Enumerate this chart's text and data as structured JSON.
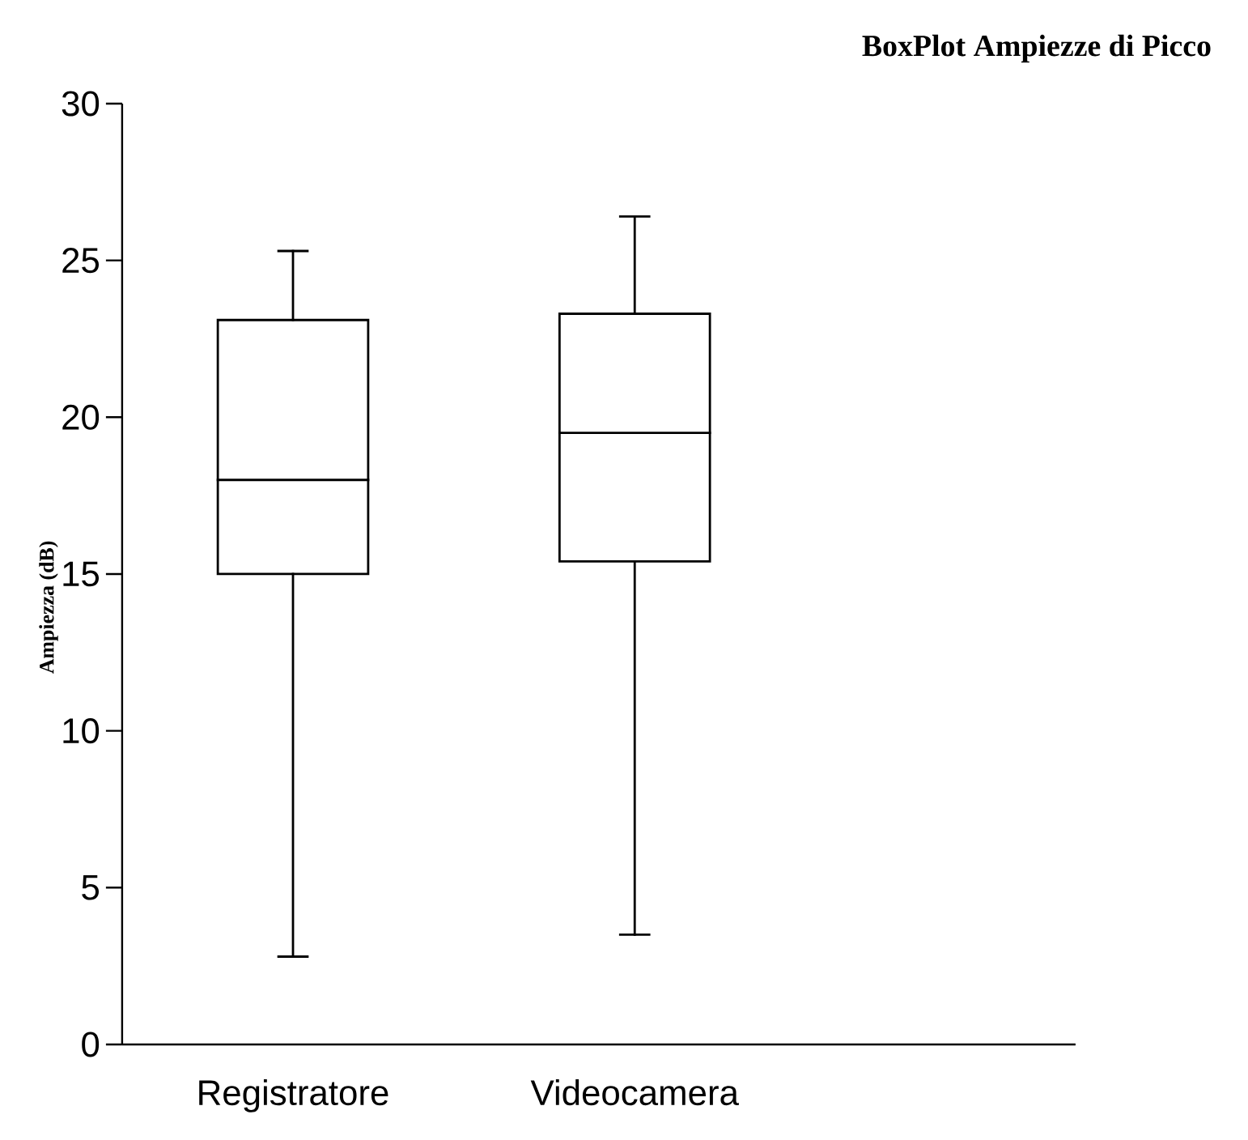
{
  "chart_data": {
    "type": "box",
    "title": "BoxPlot Ampiezze di Picco",
    "ylabel": "Ampiezza (dB)",
    "categories": [
      "Registratore",
      "Videocamera"
    ],
    "boxes": [
      {
        "low": 2.8,
        "q1": 15.0,
        "median": 18.0,
        "q3": 23.1,
        "high": 25.3
      },
      {
        "low": 3.5,
        "q1": 15.4,
        "median": 19.5,
        "q3": 23.3,
        "high": 26.4
      }
    ],
    "ylim": [
      0,
      30
    ],
    "yticks": [
      0,
      5,
      10,
      15,
      20,
      25,
      30
    ]
  }
}
